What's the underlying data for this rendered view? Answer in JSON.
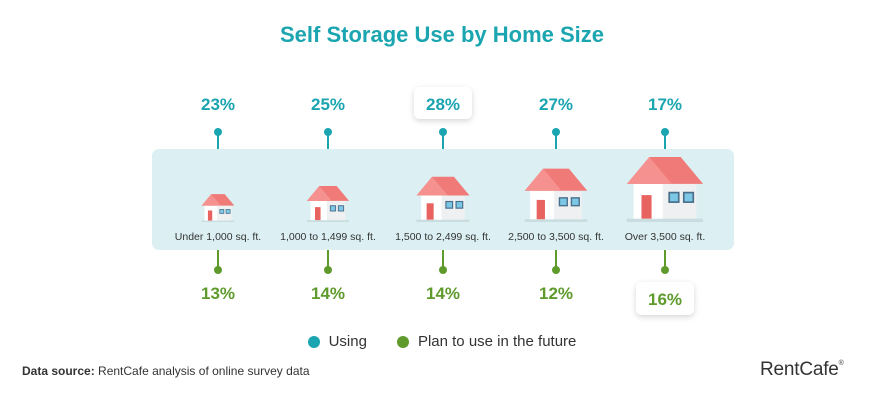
{
  "chart_data": {
    "type": "dot-stem",
    "title": "Self Storage Use by Home Size",
    "categories": [
      "Under 1,000 sq. ft.",
      "1,000 to 1,499 sq. ft.",
      "1,500 to 2,499 sq. ft.",
      "2,500 to 3,500 sq. ft.",
      "Over 3,500 sq. ft."
    ],
    "series": [
      {
        "name": "Using",
        "values": [
          23,
          25,
          28,
          27,
          17
        ],
        "labels": [
          "23%",
          "25%",
          "28%",
          "27%",
          "17%"
        ],
        "color": "#1aa5b0",
        "highlight_index": 2
      },
      {
        "name": "Plan to use in the future",
        "values": [
          13,
          14,
          14,
          12,
          16
        ],
        "labels": [
          "13%",
          "14%",
          "14%",
          "12%",
          "16%"
        ],
        "color": "#5e9a2c",
        "highlight_index": 4
      }
    ],
    "legend_placement": "bottom-center"
  },
  "footer": {
    "source_label": "Data source:",
    "source_text": "RentCafe analysis of online survey data"
  },
  "brand": {
    "logo_text": "RentCafe",
    "logo_mark": "®"
  },
  "colors": {
    "using": "#1aa5b0",
    "plan": "#5e9a2c",
    "band": "#dcf0f3",
    "roof": "#f07a78",
    "door": "#e8625f",
    "window": "#7cc6e6"
  }
}
